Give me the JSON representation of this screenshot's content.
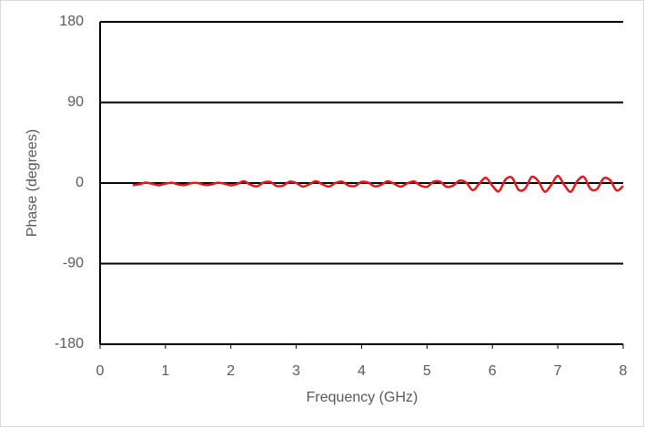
{
  "chart_data": {
    "type": "line",
    "x_label": "Frequency (GHz)",
    "y_label": "Phase (degrees)",
    "xlim": [
      0,
      8
    ],
    "ylim": [
      -180,
      180
    ],
    "xticks": [
      0,
      1,
      2,
      3,
      4,
      5,
      6,
      7,
      8
    ],
    "yticks": [
      -180,
      -90,
      0,
      90,
      180
    ],
    "grid": true,
    "series": [
      {
        "color": "#e31a1c",
        "x": [
          0.5,
          0.6,
          0.7,
          0.8,
          0.9,
          1.0,
          1.1,
          1.2,
          1.3,
          1.4,
          1.5,
          1.6,
          1.7,
          1.8,
          1.9,
          2.0,
          2.1,
          2.2,
          2.3,
          2.4,
          2.5,
          2.6,
          2.7,
          2.8,
          2.9,
          3.0,
          3.1,
          3.2,
          3.3,
          3.4,
          3.5,
          3.6,
          3.7,
          3.8,
          3.9,
          4.0,
          4.1,
          4.2,
          4.3,
          4.4,
          4.5,
          4.6,
          4.7,
          4.8,
          4.9,
          5.0,
          5.1,
          5.2,
          5.3,
          5.4,
          5.5,
          5.6,
          5.7,
          5.8,
          5.9,
          6.0,
          6.1,
          6.2,
          6.3,
          6.4,
          6.5,
          6.6,
          6.7,
          6.8,
          6.9,
          7.0,
          7.1,
          7.2,
          7.3,
          7.4,
          7.5,
          7.6,
          7.7,
          7.8,
          7.9,
          8.0
        ],
        "values": [
          -2.4,
          -1.4,
          0.5,
          -0.9,
          -2.5,
          -0.7,
          0.4,
          -1.7,
          -2.2,
          0.0,
          0.0,
          -2.2,
          -1.7,
          0.4,
          -0.7,
          -2.5,
          -0.9,
          2.0,
          -1.9,
          -3.7,
          0.6,
          1.3,
          -3.2,
          -2.8,
          1.6,
          0.1,
          -3.9,
          -1.4,
          2.0,
          -1.4,
          -3.9,
          0.1,
          1.6,
          -2.8,
          -3.2,
          1.3,
          0.6,
          -3.7,
          -1.9,
          2.0,
          -0.9,
          -4.0,
          -0.4,
          1.8,
          -2.8,
          -4.3,
          1.6,
          1.6,
          -4.3,
          -2.8,
          2.8,
          0.5,
          -8.0,
          -0.7,
          5.9,
          -3.1,
          -9.2,
          3.8,
          6.0,
          -7.5,
          -6.3,
          6.8,
          2.3,
          -9.7,
          -2.1,
          8.0,
          -2.2,
          -9.7,
          2.4,
          6.8,
          -6.4,
          -6.8,
          5.2,
          3.2,
          -8.3,
          -3.3
        ]
      }
    ]
  }
}
